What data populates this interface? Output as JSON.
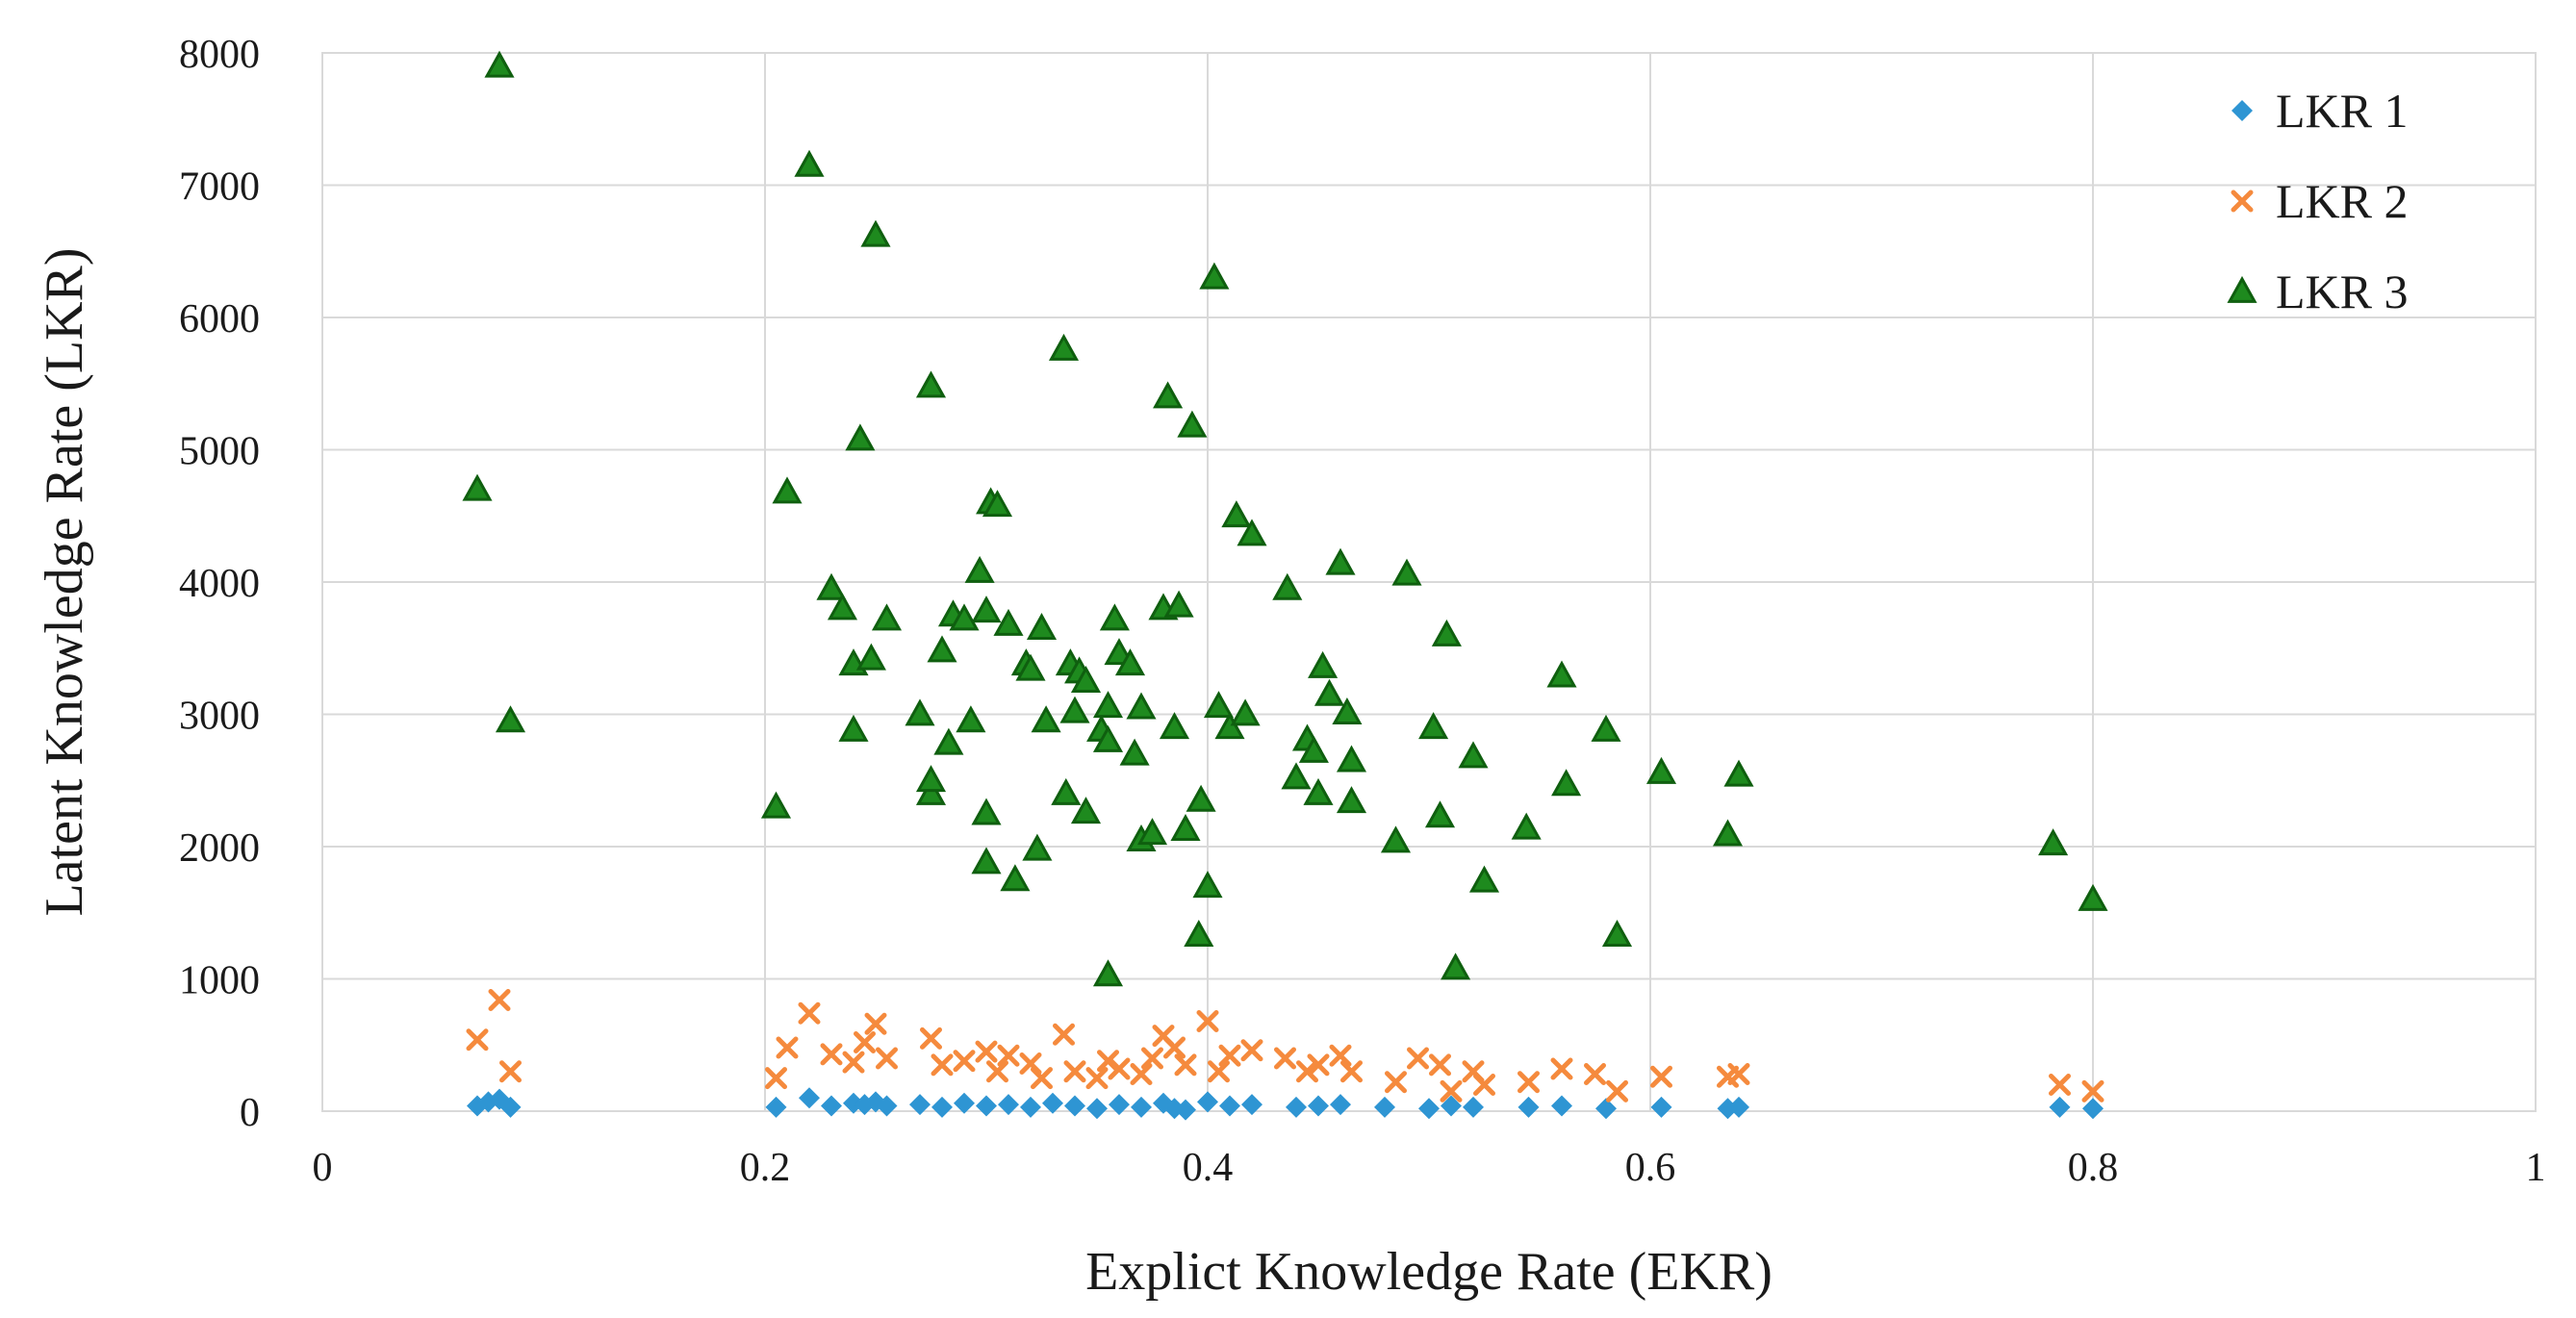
{
  "chart_data": {
    "type": "scatter",
    "title": "",
    "xlabel": "Explict Knowledge Rate (EKR)",
    "ylabel": "Latent Knowledge Rate (LKR)",
    "xlim": [
      0,
      1
    ],
    "ylim": [
      0,
      8000
    ],
    "x_ticks": [
      "0",
      "0.2",
      "0.4",
      "0.6",
      "0.8",
      "1"
    ],
    "y_ticks": [
      "0",
      "1000",
      "2000",
      "3000",
      "4000",
      "5000",
      "6000",
      "7000",
      "8000"
    ],
    "grid": true,
    "legend_position": "top-right",
    "series": [
      {
        "name": "LKR 1",
        "marker": "diamond",
        "color": "#2e95d3",
        "points": [
          [
            0.07,
            40
          ],
          [
            0.075,
            70
          ],
          [
            0.08,
            90
          ],
          [
            0.085,
            30
          ],
          [
            0.205,
            30
          ],
          [
            0.22,
            100
          ],
          [
            0.23,
            40
          ],
          [
            0.24,
            60
          ],
          [
            0.245,
            50
          ],
          [
            0.25,
            70
          ],
          [
            0.255,
            40
          ],
          [
            0.27,
            50
          ],
          [
            0.28,
            30
          ],
          [
            0.29,
            60
          ],
          [
            0.3,
            40
          ],
          [
            0.31,
            50
          ],
          [
            0.32,
            30
          ],
          [
            0.33,
            60
          ],
          [
            0.34,
            40
          ],
          [
            0.35,
            20
          ],
          [
            0.36,
            50
          ],
          [
            0.37,
            30
          ],
          [
            0.38,
            60
          ],
          [
            0.385,
            20
          ],
          [
            0.39,
            10
          ],
          [
            0.4,
            70
          ],
          [
            0.41,
            40
          ],
          [
            0.42,
            50
          ],
          [
            0.44,
            30
          ],
          [
            0.45,
            40
          ],
          [
            0.46,
            50
          ],
          [
            0.48,
            30
          ],
          [
            0.5,
            20
          ],
          [
            0.51,
            40
          ],
          [
            0.52,
            30
          ],
          [
            0.545,
            30
          ],
          [
            0.56,
            40
          ],
          [
            0.58,
            20
          ],
          [
            0.605,
            30
          ],
          [
            0.635,
            20
          ],
          [
            0.64,
            30
          ],
          [
            0.785,
            30
          ],
          [
            0.8,
            20
          ]
        ]
      },
      {
        "name": "LKR 2",
        "marker": "x",
        "color": "#f58a3d",
        "points": [
          [
            0.07,
            540
          ],
          [
            0.08,
            840
          ],
          [
            0.085,
            300
          ],
          [
            0.205,
            250
          ],
          [
            0.21,
            480
          ],
          [
            0.22,
            740
          ],
          [
            0.23,
            430
          ],
          [
            0.24,
            370
          ],
          [
            0.245,
            520
          ],
          [
            0.25,
            660
          ],
          [
            0.255,
            400
          ],
          [
            0.275,
            550
          ],
          [
            0.28,
            350
          ],
          [
            0.29,
            380
          ],
          [
            0.3,
            450
          ],
          [
            0.305,
            300
          ],
          [
            0.31,
            420
          ],
          [
            0.32,
            360
          ],
          [
            0.325,
            250
          ],
          [
            0.335,
            580
          ],
          [
            0.34,
            300
          ],
          [
            0.35,
            250
          ],
          [
            0.355,
            380
          ],
          [
            0.36,
            320
          ],
          [
            0.37,
            280
          ],
          [
            0.375,
            400
          ],
          [
            0.38,
            570
          ],
          [
            0.385,
            480
          ],
          [
            0.39,
            350
          ],
          [
            0.4,
            680
          ],
          [
            0.405,
            300
          ],
          [
            0.41,
            420
          ],
          [
            0.42,
            460
          ],
          [
            0.435,
            400
          ],
          [
            0.445,
            300
          ],
          [
            0.45,
            350
          ],
          [
            0.46,
            420
          ],
          [
            0.465,
            300
          ],
          [
            0.485,
            220
          ],
          [
            0.495,
            400
          ],
          [
            0.505,
            350
          ],
          [
            0.51,
            150
          ],
          [
            0.52,
            300
          ],
          [
            0.525,
            200
          ],
          [
            0.545,
            220
          ],
          [
            0.56,
            320
          ],
          [
            0.575,
            280
          ],
          [
            0.585,
            150
          ],
          [
            0.605,
            260
          ],
          [
            0.635,
            260
          ],
          [
            0.64,
            280
          ],
          [
            0.785,
            200
          ],
          [
            0.8,
            150
          ]
        ]
      },
      {
        "name": "LKR 3",
        "marker": "triangle",
        "color": "#1e8a1e",
        "points": [
          [
            0.07,
            4700
          ],
          [
            0.08,
            7900
          ],
          [
            0.085,
            2950
          ],
          [
            0.205,
            2300
          ],
          [
            0.21,
            4680
          ],
          [
            0.22,
            7150
          ],
          [
            0.23,
            3950
          ],
          [
            0.235,
            3800
          ],
          [
            0.24,
            3380
          ],
          [
            0.24,
            2880
          ],
          [
            0.243,
            5080
          ],
          [
            0.248,
            3420
          ],
          [
            0.25,
            6620
          ],
          [
            0.255,
            3720
          ],
          [
            0.27,
            3000
          ],
          [
            0.275,
            2400
          ],
          [
            0.275,
            2500
          ],
          [
            0.275,
            5480
          ],
          [
            0.28,
            3480
          ],
          [
            0.283,
            2780
          ],
          [
            0.285,
            3750
          ],
          [
            0.29,
            3720
          ],
          [
            0.293,
            2950
          ],
          [
            0.297,
            4080
          ],
          [
            0.3,
            3780
          ],
          [
            0.3,
            2250
          ],
          [
            0.3,
            1880
          ],
          [
            0.302,
            4600
          ],
          [
            0.305,
            4580
          ],
          [
            0.31,
            3680
          ],
          [
            0.313,
            1750
          ],
          [
            0.318,
            3380
          ],
          [
            0.32,
            3340
          ],
          [
            0.323,
            1980
          ],
          [
            0.325,
            3650
          ],
          [
            0.327,
            2950
          ],
          [
            0.335,
            5760
          ],
          [
            0.336,
            2400
          ],
          [
            0.338,
            3380
          ],
          [
            0.34,
            3020
          ],
          [
            0.342,
            3320
          ],
          [
            0.345,
            2260
          ],
          [
            0.345,
            3250
          ],
          [
            0.352,
            2880
          ],
          [
            0.355,
            2800
          ],
          [
            0.355,
            3060
          ],
          [
            0.355,
            1030
          ],
          [
            0.358,
            3720
          ],
          [
            0.36,
            3460
          ],
          [
            0.365,
            3380
          ],
          [
            0.367,
            2700
          ],
          [
            0.37,
            3050
          ],
          [
            0.37,
            2050
          ],
          [
            0.375,
            2100
          ],
          [
            0.38,
            3800
          ],
          [
            0.382,
            5400
          ],
          [
            0.385,
            2900
          ],
          [
            0.387,
            3820
          ],
          [
            0.39,
            2130
          ],
          [
            0.393,
            5180
          ],
          [
            0.396,
            1330
          ],
          [
            0.397,
            2350
          ],
          [
            0.4,
            1700
          ],
          [
            0.403,
            6300
          ],
          [
            0.405,
            3060
          ],
          [
            0.41,
            2900
          ],
          [
            0.413,
            4500
          ],
          [
            0.417,
            3000
          ],
          [
            0.42,
            4360
          ],
          [
            0.436,
            3950
          ],
          [
            0.44,
            2520
          ],
          [
            0.445,
            2810
          ],
          [
            0.448,
            2720
          ],
          [
            0.45,
            2400
          ],
          [
            0.452,
            3360
          ],
          [
            0.455,
            3150
          ],
          [
            0.46,
            4140
          ],
          [
            0.463,
            3010
          ],
          [
            0.465,
            2650
          ],
          [
            0.465,
            2340
          ],
          [
            0.485,
            2040
          ],
          [
            0.49,
            4060
          ],
          [
            0.502,
            2900
          ],
          [
            0.505,
            2230
          ],
          [
            0.508,
            3600
          ],
          [
            0.512,
            1080
          ],
          [
            0.52,
            2680
          ],
          [
            0.525,
            1740
          ],
          [
            0.544,
            2140
          ],
          [
            0.56,
            3290
          ],
          [
            0.562,
            2470
          ],
          [
            0.58,
            2880
          ],
          [
            0.585,
            1330
          ],
          [
            0.605,
            2560
          ],
          [
            0.635,
            2090
          ],
          [
            0.64,
            2540
          ],
          [
            0.782,
            2020
          ],
          [
            0.8,
            1600
          ]
        ]
      }
    ]
  }
}
